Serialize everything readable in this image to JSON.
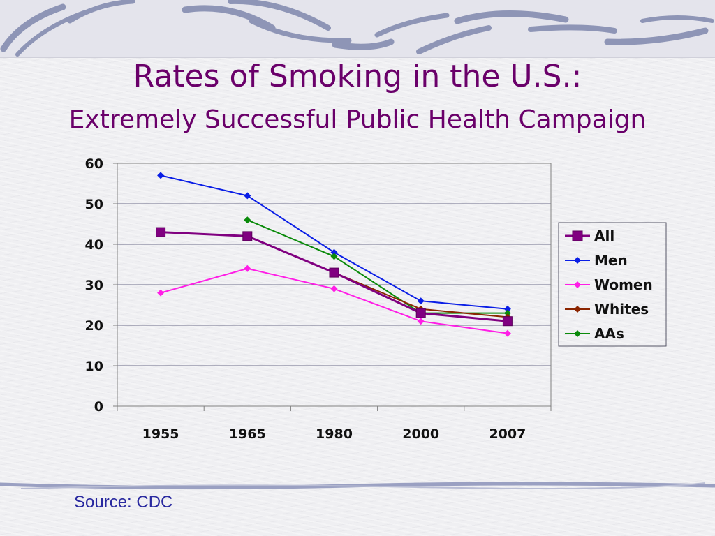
{
  "slide": {
    "title": "Rates of Smoking in the U.S.:",
    "subtitle": "Extremely Successful Public Health Campaign",
    "source": "Source: CDC",
    "title_color": "#6a006a",
    "source_color": "#2a2aa0"
  },
  "chart_data": {
    "type": "line",
    "categories": [
      "1955",
      "1965",
      "1980",
      "2000",
      "2007"
    ],
    "ylim": [
      0,
      60
    ],
    "yticks": [
      0,
      10,
      20,
      30,
      40,
      50,
      60
    ],
    "grid": true,
    "legend_position": "right",
    "series": [
      {
        "name": "All",
        "color": "#800080",
        "marker": "square",
        "values": [
          43,
          42,
          33,
          23,
          21
        ]
      },
      {
        "name": "Men",
        "color": "#0a1ee6",
        "marker": "diamond",
        "values": [
          57,
          52,
          38,
          26,
          24
        ]
      },
      {
        "name": "Women",
        "color": "#ff1ee6",
        "marker": "diamond",
        "values": [
          28,
          34,
          29,
          21,
          18
        ]
      },
      {
        "name": "Whites",
        "color": "#8b2500",
        "marker": "diamond",
        "values": [
          null,
          42,
          33,
          24,
          22
        ]
      },
      {
        "name": "AAs",
        "color": "#0a8a0a",
        "marker": "diamond",
        "values": [
          null,
          46,
          37,
          23,
          23
        ]
      }
    ]
  }
}
